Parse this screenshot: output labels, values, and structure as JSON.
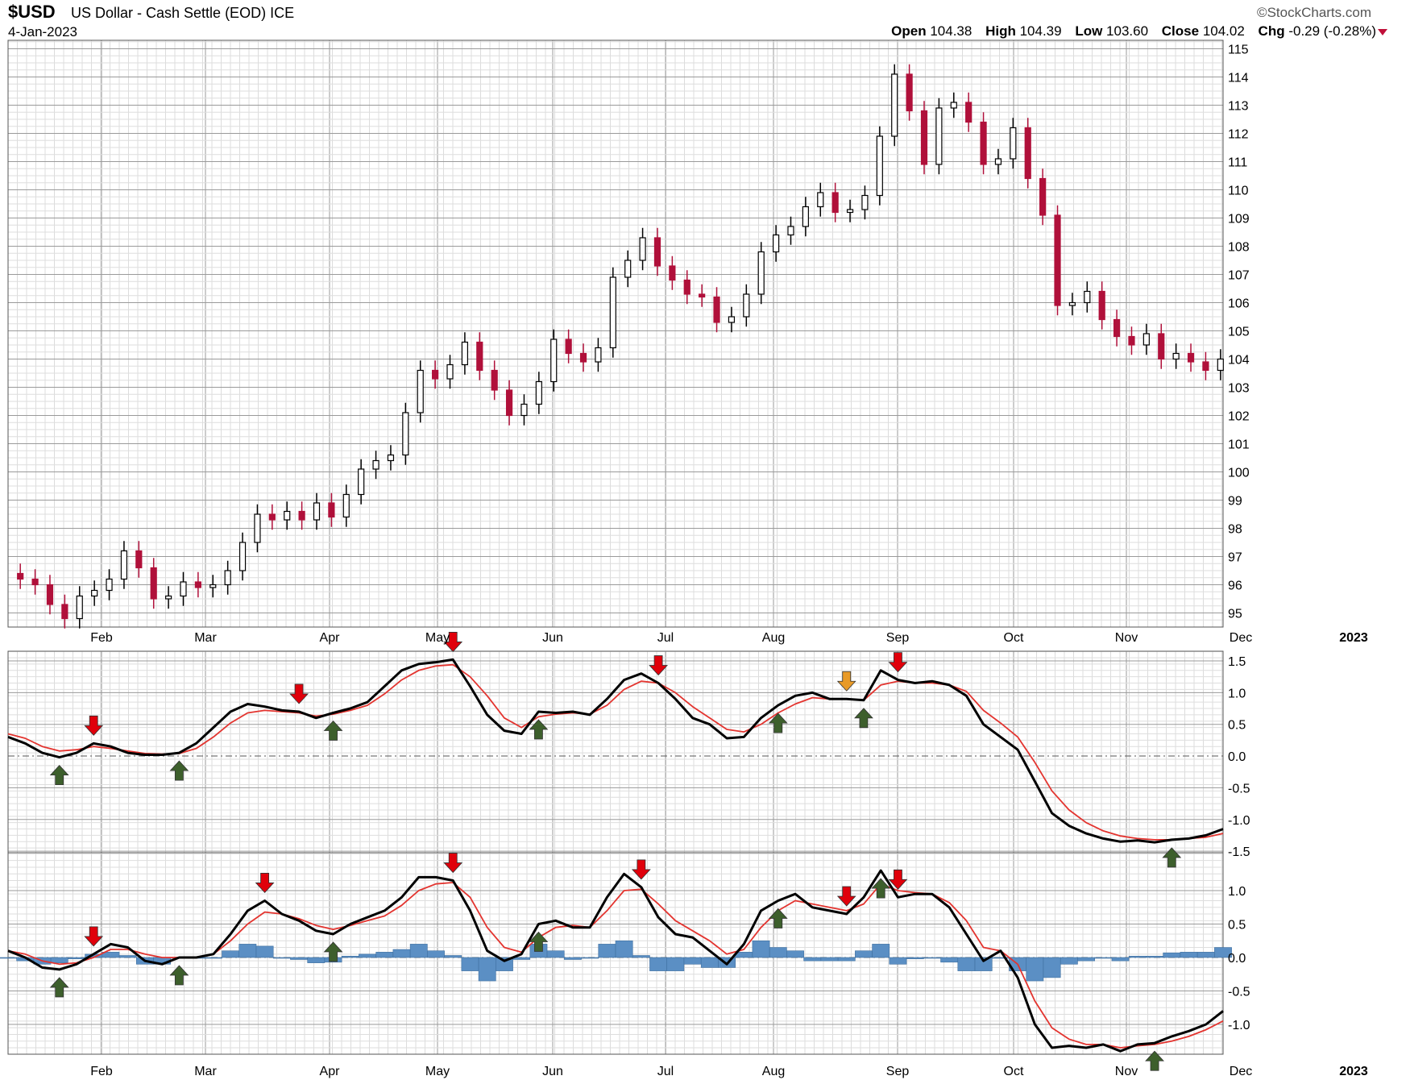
{
  "header": {
    "symbol": "$USD",
    "description": "US Dollar - Cash Settle (EOD)",
    "exchange": "ICE",
    "date": "4-Jan-2023",
    "brand": "©StockCharts.com",
    "open_label": "Open",
    "open": "104.38",
    "high_label": "High",
    "high": "104.39",
    "low_label": "Low",
    "low": "103.60",
    "close_label": "Close",
    "close": "104.02",
    "chg_label": "Chg",
    "chg": "-0.29 (-0.28%)"
  },
  "colors": {
    "up": "#000000",
    "down": "#b0103a",
    "signal": "#e3342f",
    "hist": "#5b8fc4",
    "grid": "#c8c8c8",
    "arrow_buy": "#3d5f2c",
    "arrow_sell": "#e0000b",
    "arrow_neutral": "#e89a27"
  },
  "chart_data": [
    {
      "type": "candlestick",
      "title": "$USD US Dollar - Cash Settle (EOD)",
      "x_months": [
        "Feb",
        "Mar",
        "Apr",
        "May",
        "Jun",
        "Jul",
        "Aug",
        "Sep",
        "Oct",
        "Nov",
        "Dec",
        "2023"
      ],
      "ylim": [
        94.5,
        115.3
      ],
      "y_ticks": [
        95,
        96,
        97,
        98,
        99,
        100,
        101,
        102,
        103,
        104,
        105,
        106,
        107,
        108,
        109,
        110,
        111,
        112,
        113,
        114,
        115
      ],
      "grid": true,
      "close_series": [
        96.2,
        96.0,
        95.3,
        94.8,
        95.6,
        95.8,
        96.2,
        97.2,
        96.6,
        95.5,
        95.6,
        96.1,
        95.9,
        96.0,
        96.5,
        97.5,
        98.5,
        98.3,
        98.6,
        98.3,
        98.9,
        98.4,
        99.2,
        100.1,
        100.4,
        100.6,
        102.1,
        103.6,
        103.3,
        103.8,
        104.6,
        103.6,
        102.9,
        102.0,
        102.4,
        103.2,
        104.7,
        104.2,
        103.9,
        104.4,
        106.9,
        107.5,
        108.3,
        107.3,
        106.8,
        106.3,
        106.2,
        105.3,
        105.5,
        106.3,
        107.8,
        108.4,
        108.7,
        109.4,
        109.9,
        109.2,
        109.3,
        109.8,
        111.9,
        114.1,
        112.8,
        110.9,
        112.9,
        113.1,
        112.4,
        110.9,
        111.1,
        112.2,
        110.4,
        109.1,
        105.9,
        106.0,
        106.4,
        105.4,
        104.8,
        104.5,
        104.9,
        104.0,
        104.2,
        103.9,
        103.6,
        104.0
      ]
    },
    {
      "type": "line",
      "title": "",
      "ylim": [
        -1.5,
        1.5
      ],
      "y_ticks": [
        1.5,
        1.0,
        0.5,
        0.0,
        -0.5,
        -1.0,
        -1.5
      ],
      "series": [
        {
          "name": "",
          "values": [
            0.3,
            0.2,
            0.05,
            -0.02,
            0.05,
            0.2,
            0.15,
            0.05,
            0.02,
            0.02,
            0.05,
            0.2,
            0.45,
            0.7,
            0.82,
            0.78,
            0.72,
            0.7,
            0.6,
            0.68,
            0.75,
            0.85,
            1.1,
            1.35,
            1.45,
            1.48,
            1.52,
            1.1,
            0.65,
            0.4,
            0.35,
            0.7,
            0.68,
            0.7,
            0.65,
            0.9,
            1.2,
            1.3,
            1.15,
            0.9,
            0.6,
            0.5,
            0.28,
            0.3,
            0.6,
            0.8,
            0.95,
            1.0,
            0.9,
            0.9,
            0.88,
            1.35,
            1.2,
            1.15,
            1.18,
            1.12,
            0.95,
            0.5,
            0.3,
            0.1,
            -0.4,
            -0.9,
            -1.1,
            -1.22,
            -1.3,
            -1.35,
            -1.33,
            -1.36,
            -1.32,
            -1.3,
            -1.25,
            -1.15
          ]
        },
        {
          "name": "",
          "values": [
            0.35,
            0.28,
            0.15,
            0.08,
            0.1,
            0.15,
            0.12,
            0.08,
            0.04,
            0.03,
            0.04,
            0.12,
            0.3,
            0.52,
            0.68,
            0.72,
            0.7,
            0.68,
            0.63,
            0.66,
            0.72,
            0.8,
            0.98,
            1.2,
            1.35,
            1.42,
            1.44,
            1.25,
            0.95,
            0.6,
            0.45,
            0.62,
            0.66,
            0.68,
            0.66,
            0.8,
            1.05,
            1.18,
            1.15,
            1.0,
            0.78,
            0.6,
            0.42,
            0.38,
            0.5,
            0.68,
            0.82,
            0.92,
            0.9,
            0.9,
            0.88,
            1.12,
            1.18,
            1.15,
            1.15,
            1.12,
            1.02,
            0.72,
            0.52,
            0.3,
            -0.1,
            -0.55,
            -0.85,
            -1.05,
            -1.18,
            -1.26,
            -1.3,
            -1.32,
            -1.32,
            -1.3,
            -1.28,
            -1.22
          ]
        }
      ]
    },
    {
      "type": "line",
      "title": "",
      "ylim": [
        -1.5,
        1.5
      ],
      "y_ticks": [
        1.0,
        0.5,
        0.0,
        -0.5,
        -1.0
      ],
      "series": [
        {
          "name": "",
          "values": [
            0.1,
            0.0,
            -0.15,
            -0.18,
            -0.1,
            0.05,
            0.2,
            0.15,
            -0.05,
            -0.1,
            0.0,
            0.0,
            0.05,
            0.35,
            0.7,
            0.85,
            0.65,
            0.55,
            0.4,
            0.35,
            0.5,
            0.6,
            0.7,
            0.9,
            1.2,
            1.2,
            1.15,
            0.7,
            0.1,
            -0.05,
            0.05,
            0.5,
            0.55,
            0.45,
            0.45,
            0.9,
            1.25,
            1.05,
            0.6,
            0.35,
            0.3,
            0.1,
            -0.1,
            0.2,
            0.7,
            0.85,
            0.95,
            0.75,
            0.7,
            0.65,
            0.9,
            1.3,
            0.9,
            0.95,
            0.95,
            0.75,
            0.35,
            -0.05,
            0.1,
            -0.3,
            -1.0,
            -1.35,
            -1.32,
            -1.35,
            -1.3,
            -1.4,
            -1.3,
            -1.28,
            -1.18,
            -1.1,
            -1.0,
            -0.8
          ]
        },
        {
          "name": "",
          "values": [
            0.1,
            0.05,
            -0.05,
            -0.1,
            -0.08,
            0.0,
            0.12,
            0.12,
            0.05,
            0.0,
            0.0,
            0.0,
            0.05,
            0.25,
            0.5,
            0.68,
            0.65,
            0.58,
            0.48,
            0.42,
            0.48,
            0.55,
            0.62,
            0.78,
            1.0,
            1.1,
            1.12,
            0.9,
            0.45,
            0.15,
            0.08,
            0.3,
            0.45,
            0.48,
            0.45,
            0.7,
            1.0,
            1.02,
            0.8,
            0.55,
            0.4,
            0.25,
            0.05,
            0.12,
            0.45,
            0.7,
            0.85,
            0.8,
            0.75,
            0.7,
            0.8,
            1.1,
            1.0,
            0.97,
            0.95,
            0.82,
            0.55,
            0.15,
            0.1,
            -0.1,
            -0.65,
            -1.05,
            -1.22,
            -1.3,
            -1.3,
            -1.35,
            -1.32,
            -1.3,
            -1.25,
            -1.18,
            -1.08,
            -0.95
          ]
        },
        {
          "name": "",
          "values": [
            0.0,
            -0.05,
            -0.1,
            -0.08,
            -0.02,
            0.05,
            0.08,
            0.03,
            -0.1,
            -0.1,
            0.0,
            0.0,
            0.0,
            0.1,
            0.2,
            0.17,
            0.0,
            -0.03,
            -0.08,
            -0.07,
            0.02,
            0.05,
            0.08,
            0.12,
            0.2,
            0.1,
            0.03,
            -0.2,
            -0.35,
            -0.2,
            -0.03,
            0.2,
            0.1,
            -0.03,
            0.0,
            0.2,
            0.25,
            0.03,
            -0.2,
            -0.2,
            -0.1,
            -0.15,
            -0.15,
            0.08,
            0.25,
            0.15,
            0.1,
            -0.05,
            -0.05,
            -0.05,
            0.1,
            0.2,
            -0.1,
            -0.02,
            0.0,
            -0.07,
            -0.2,
            -0.2,
            0.0,
            -0.2,
            -0.35,
            -0.3,
            -0.1,
            -0.05,
            0.0,
            -0.05,
            0.02,
            0.02,
            0.07,
            0.08,
            0.08,
            0.15
          ]
        }
      ]
    }
  ],
  "signals": {
    "panel1": [
      {
        "dir": "up",
        "color": "buy",
        "idx": 3
      },
      {
        "dir": "down",
        "color": "sell",
        "idx": 5
      },
      {
        "dir": "up",
        "color": "buy",
        "idx": 10
      },
      {
        "dir": "down",
        "color": "sell",
        "idx": 17
      },
      {
        "dir": "up",
        "color": "buy",
        "idx": 19
      },
      {
        "dir": "down",
        "color": "sell",
        "idx": 26
      },
      {
        "dir": "up",
        "color": "buy",
        "idx": 31
      },
      {
        "dir": "down",
        "color": "sell",
        "idx": 38
      },
      {
        "dir": "up",
        "color": "buy",
        "idx": 45
      },
      {
        "dir": "down",
        "color": "neutral",
        "idx": 49
      },
      {
        "dir": "up",
        "color": "buy",
        "idx": 50
      },
      {
        "dir": "down",
        "color": "sell",
        "idx": 52
      },
      {
        "dir": "up",
        "color": "buy",
        "idx": 68
      }
    ],
    "panel2": [
      {
        "dir": "up",
        "color": "buy",
        "idx": 3
      },
      {
        "dir": "down",
        "color": "sell",
        "idx": 5
      },
      {
        "dir": "up",
        "color": "buy",
        "idx": 10
      },
      {
        "dir": "down",
        "color": "sell",
        "idx": 15
      },
      {
        "dir": "up",
        "color": "buy",
        "idx": 19
      },
      {
        "dir": "down",
        "color": "sell",
        "idx": 26
      },
      {
        "dir": "up",
        "color": "buy",
        "idx": 31
      },
      {
        "dir": "down",
        "color": "sell",
        "idx": 37
      },
      {
        "dir": "up",
        "color": "buy",
        "idx": 45
      },
      {
        "dir": "down",
        "color": "sell",
        "idx": 49
      },
      {
        "dir": "up",
        "color": "buy",
        "idx": 51
      },
      {
        "dir": "down",
        "color": "sell",
        "idx": 52
      },
      {
        "dir": "up",
        "color": "buy",
        "idx": 67
      }
    ]
  }
}
